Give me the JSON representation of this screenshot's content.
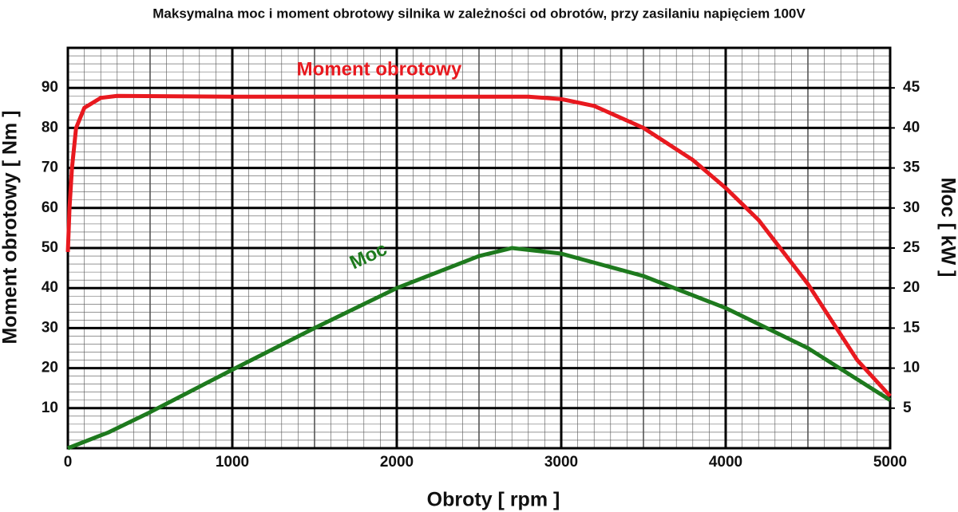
{
  "chart_data": {
    "type": "line",
    "title": "Maksymalna moc i moment obrotowy silnika w zależności od obrotów, przy zasilaniu napięciem 100V",
    "x_label": "Obroty [ rpm ]",
    "y_label": "Moment obrotowy [ Nm ]",
    "y2_label": "Moc [ kW ]",
    "xlim": [
      0,
      5000
    ],
    "xticks": [
      0,
      1000,
      2000,
      3000,
      4000,
      5000
    ],
    "ylim": [
      0,
      100
    ],
    "yticks": [
      10,
      20,
      30,
      40,
      50,
      60,
      70,
      80,
      90
    ],
    "y2lim": [
      0,
      50
    ],
    "y2ticks": [
      5,
      10,
      15,
      20,
      25,
      30,
      35,
      40,
      45
    ],
    "grid": true,
    "series": [
      {
        "name": "Moment obrotowy",
        "color": "#e8191f",
        "x": [
          0,
          10,
          25,
          50,
          100,
          200,
          300,
          1000,
          2000,
          2800,
          3000,
          3200,
          3500,
          3800,
          4000,
          4200,
          4500,
          4800,
          5000
        ],
        "values": [
          49,
          60,
          70,
          80,
          85,
          87.5,
          88,
          87.8,
          87.8,
          87.8,
          87.2,
          85.5,
          80,
          72,
          65,
          57,
          41,
          22,
          13
        ]
      },
      {
        "name": "Moc",
        "color": "#1e7a1e",
        "axis": "y2",
        "x": [
          0,
          250,
          500,
          1000,
          1500,
          2000,
          2500,
          2700,
          3000,
          3500,
          4000,
          4500,
          5000
        ],
        "values": [
          0,
          2,
          4.5,
          9.8,
          15,
          20,
          24,
          25,
          24.3,
          21.5,
          17.5,
          12.5,
          6
        ]
      }
    ]
  }
}
